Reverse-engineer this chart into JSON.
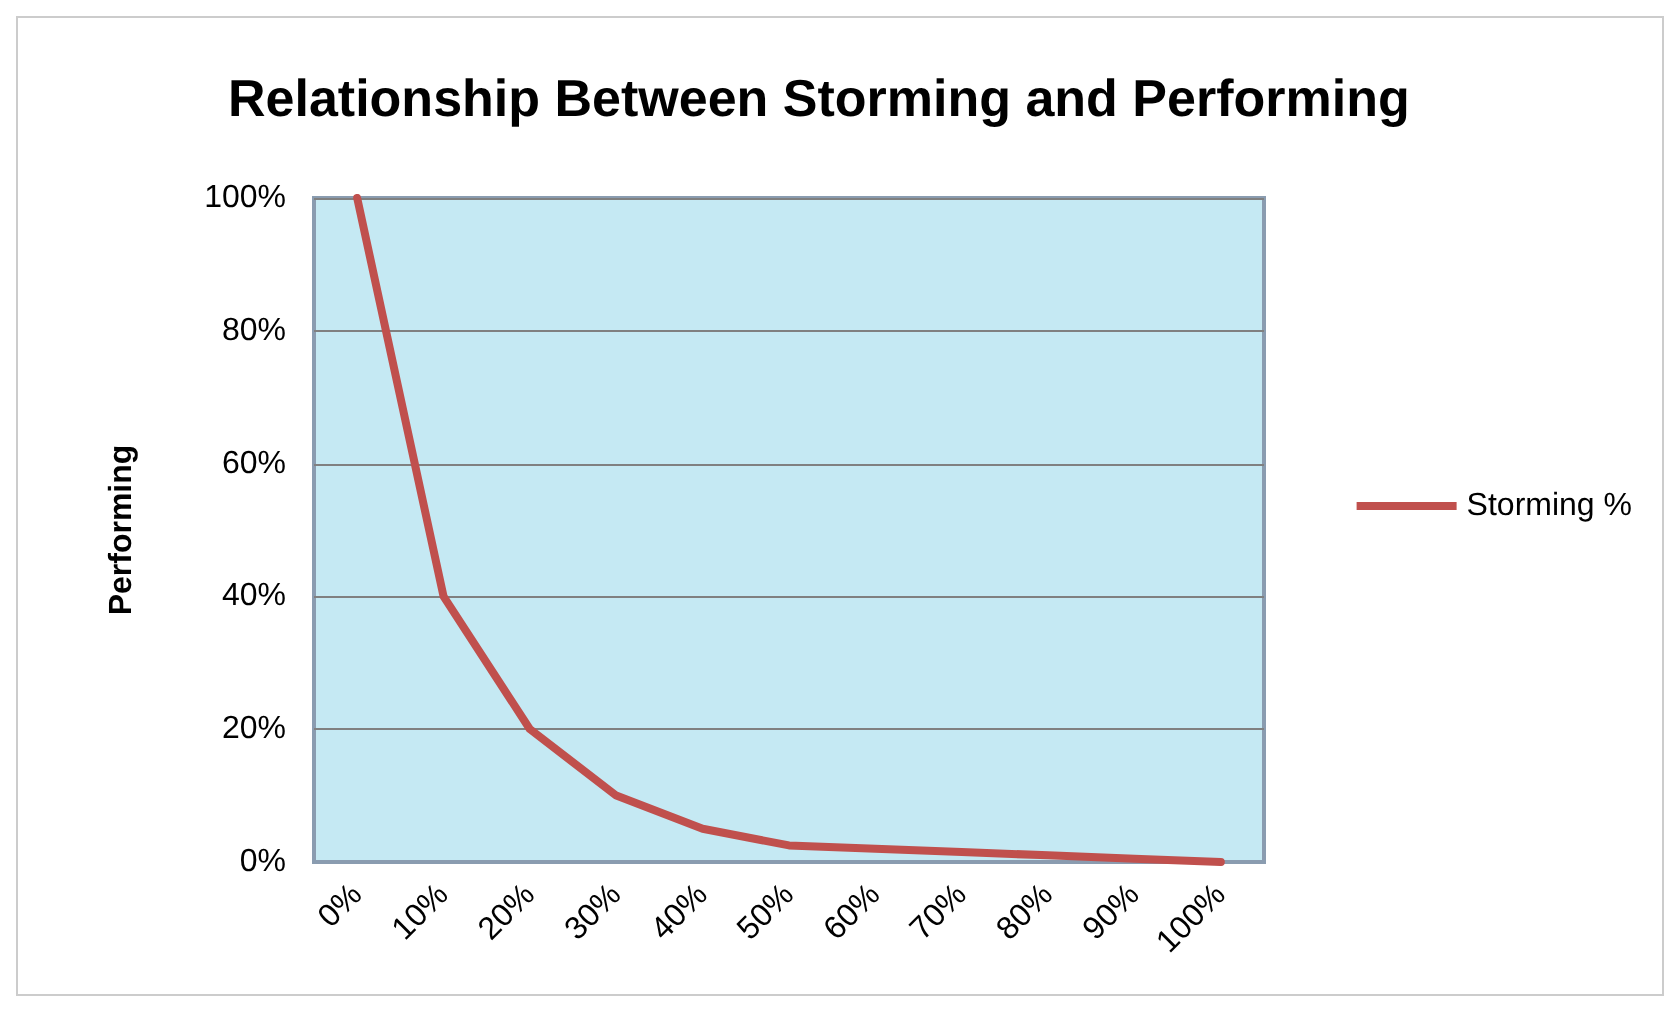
{
  "chart_data": {
    "type": "line",
    "title": "Relationship Between Storming and Performing",
    "ylabel": "Performing",
    "categories": [
      "0%",
      "10%",
      "20%",
      "30%",
      "40%",
      "50%",
      "60%",
      "70%",
      "80%",
      "90%",
      "100%"
    ],
    "series": [
      {
        "name": "Storming %",
        "color": "#c0504d",
        "values": [
          100,
          40,
          20,
          10,
          5,
          2.5,
          2,
          1.5,
          1,
          0.5,
          0
        ]
      }
    ],
    "ylim": [
      0,
      100
    ],
    "yticks": [
      {
        "value": 0,
        "label": "0%"
      },
      {
        "value": 20,
        "label": "20%"
      },
      {
        "value": 40,
        "label": "40%"
      },
      {
        "value": 60,
        "label": "60%"
      },
      {
        "value": 80,
        "label": "80%"
      },
      {
        "value": 100,
        "label": "100%"
      }
    ],
    "grid": "y",
    "legend": "right",
    "marker": "none",
    "line_style": "solid"
  }
}
